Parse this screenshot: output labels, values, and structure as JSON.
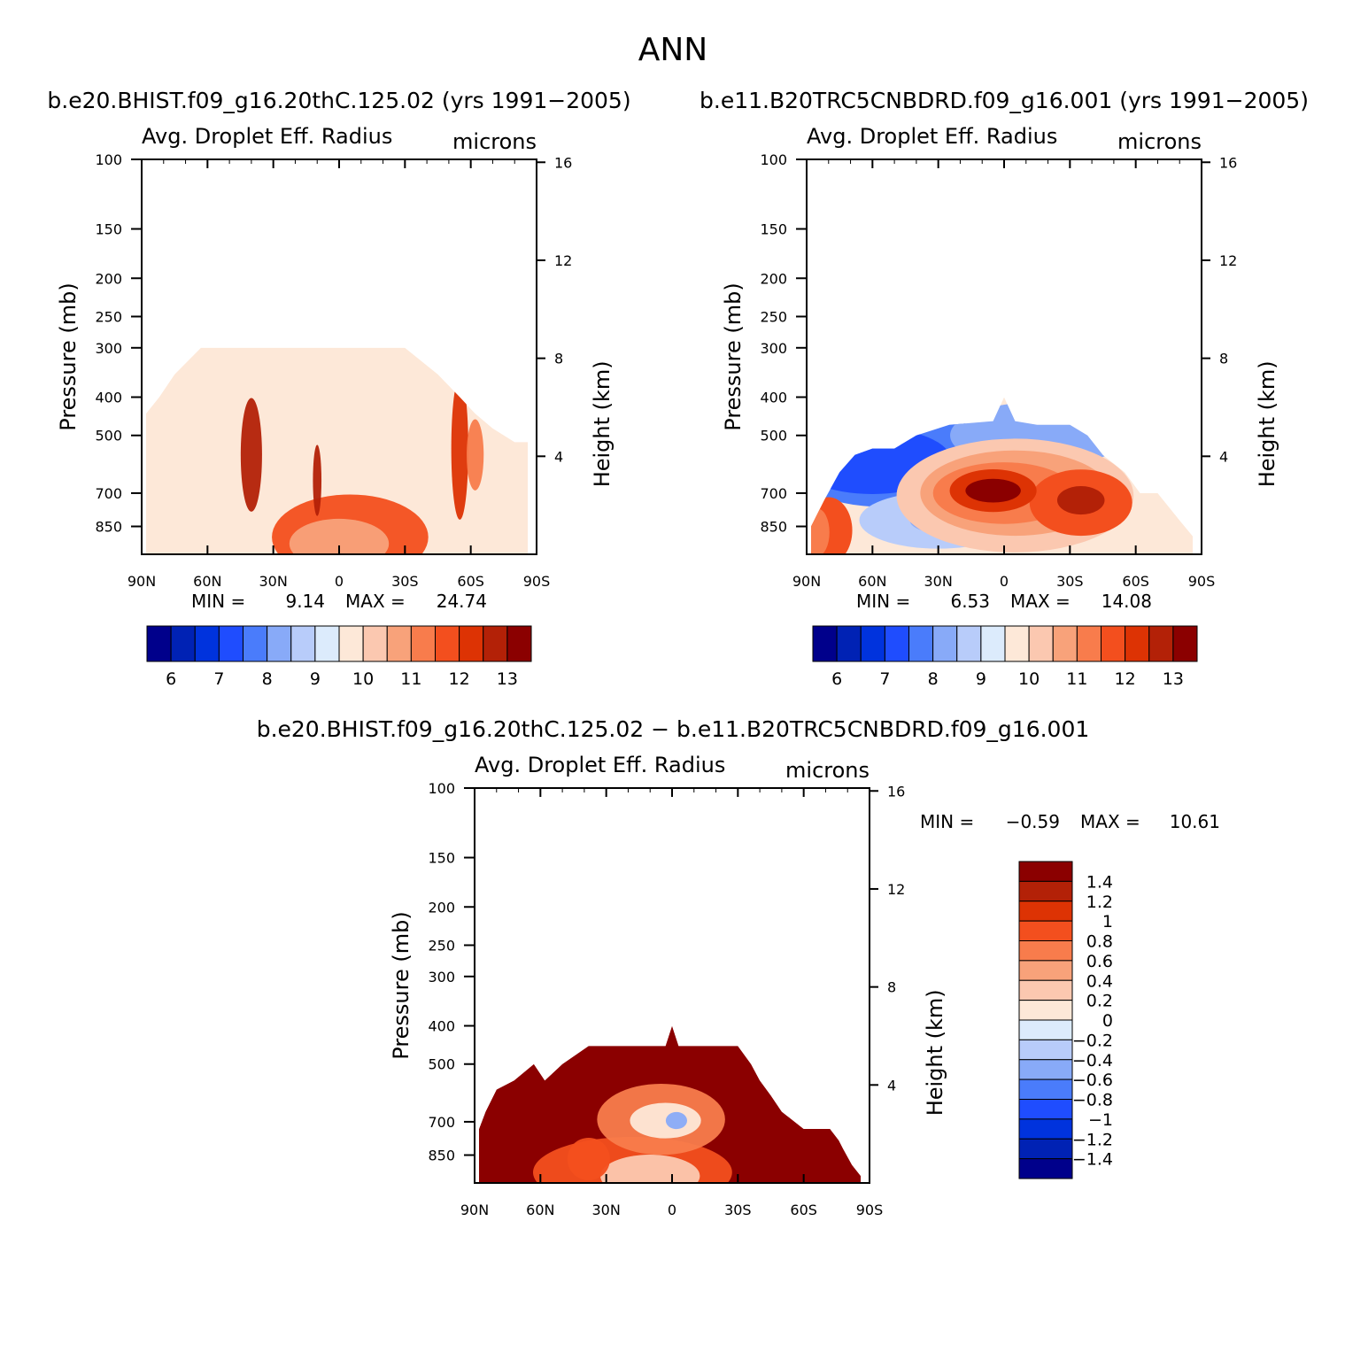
{
  "figure": {
    "title": "ANN",
    "diff_title": "b.e20.BHIST.f09_g16.20thC.125.02 − b.e11.B20TRC5CNBDRD.f09_g16.001"
  },
  "chart_data": [
    {
      "type": "heatmap",
      "case_title": "b.e20.BHIST.f09_g16.20thC.125.02 (yrs 1991−2005)",
      "title": "Avg. Droplet Eff. Radius",
      "units": "microns",
      "ylabel": "Pressure (mb)",
      "y2label": "Height (km)",
      "xticks": [
        "90N",
        "60N",
        "30N",
        "0",
        "30S",
        "60S",
        "90S"
      ],
      "xlim": [
        90,
        -90
      ],
      "yticks": [
        100,
        150,
        200,
        250,
        300,
        400,
        500,
        700,
        850
      ],
      "ylim": [
        100,
        1000
      ],
      "y_scale": "log",
      "y2ticks": [
        16,
        12,
        8,
        4
      ],
      "min_label": "MIN =",
      "min": "9.14",
      "max_label": "MAX =",
      "max": "24.74",
      "colorbar": {
        "orientation": "horizontal",
        "labels": [
          "6",
          "7",
          "8",
          "9",
          "10",
          "11",
          "12",
          "13"
        ],
        "colors": [
          "#00008b",
          "#0022b4",
          "#0033dd",
          "#1f4dfe",
          "#4a7cfb",
          "#88aaf8",
          "#b8ccfa",
          "#dcebfc",
          "#fde8d8",
          "#fbc8b0",
          "#f8a27a",
          "#f87c4c",
          "#f34f1e",
          "#dd3304",
          "#b32107",
          "#8b0000"
        ]
      },
      "data_top_pressure": {
        "lat": [
          88,
          82,
          75,
          63,
          45,
          30,
          15,
          0,
          -15,
          -30,
          -45,
          -55,
          -62,
          -70,
          -80,
          -86
        ],
        "pressure": [
          440,
          400,
          350,
          300,
          300,
          300,
          300,
          300,
          300,
          300,
          350,
          400,
          440,
          480,
          520,
          520
        ]
      },
      "fill_level": 13.5
    },
    {
      "type": "heatmap",
      "case_title": "b.e11.B20TRC5CNBDRD.f09_g16.001 (yrs 1991−2005)",
      "title": "Avg. Droplet Eff. Radius",
      "units": "microns",
      "ylabel": "Pressure (mb)",
      "y2label": "Height (km)",
      "xticks": [
        "90N",
        "60N",
        "30N",
        "0",
        "30S",
        "60S",
        "90S"
      ],
      "xlim": [
        90,
        -90
      ],
      "yticks": [
        100,
        150,
        200,
        250,
        300,
        400,
        500,
        700,
        850
      ],
      "ylim": [
        100,
        1000
      ],
      "y_scale": "log",
      "y2ticks": [
        16,
        12,
        8,
        4
      ],
      "min_label": "MIN =",
      "min": "6.53",
      "max_label": "MAX =",
      "max": "14.08",
      "colorbar": {
        "orientation": "horizontal",
        "labels": [
          "6",
          "7",
          "8",
          "9",
          "10",
          "11",
          "12",
          "13"
        ],
        "colors": [
          "#00008b",
          "#0022b4",
          "#0033dd",
          "#1f4dfe",
          "#4a7cfb",
          "#88aaf8",
          "#b8ccfa",
          "#dcebfc",
          "#fde8d8",
          "#fbc8b0",
          "#f8a27a",
          "#f87c4c",
          "#f34f1e",
          "#dd3304",
          "#b32107",
          "#8b0000"
        ]
      },
      "data_top_pressure": {
        "lat": [
          88,
          82,
          75,
          68,
          60,
          50,
          40,
          25,
          5,
          0,
          -5,
          -15,
          -30,
          -38,
          -45,
          -55,
          -62,
          -70,
          -80,
          -86
        ],
        "pressure": [
          850,
          730,
          620,
          560,
          540,
          540,
          500,
          470,
          460,
          400,
          460,
          470,
          470,
          500,
          560,
          620,
          700,
          700,
          820,
          900
        ]
      }
    },
    {
      "type": "heatmap",
      "title": "Avg. Droplet Eff. Radius",
      "units": "microns",
      "ylabel": "Pressure (mb)",
      "y2label": "Height (km)",
      "xticks": [
        "90N",
        "60N",
        "30N",
        "0",
        "30S",
        "60S",
        "90S"
      ],
      "xlim": [
        90,
        -90
      ],
      "yticks": [
        100,
        150,
        200,
        250,
        300,
        400,
        500,
        700,
        850
      ],
      "ylim": [
        100,
        1000
      ],
      "y_scale": "log",
      "y2ticks": [
        16,
        12,
        8,
        4
      ],
      "min_label": "MIN =",
      "min": "−0.59",
      "max_label": "MAX =",
      "max": "10.61",
      "colorbar": {
        "orientation": "vertical",
        "labels": [
          "1.4",
          "1.2",
          "1",
          "0.8",
          "0.6",
          "0.4",
          "0.2",
          "0",
          "−0.2",
          "−0.4",
          "−0.6",
          "−0.8",
          "−1",
          "−1.2",
          "−1.4"
        ],
        "colors": [
          "#8b0000",
          "#b32107",
          "#dd3304",
          "#f34f1e",
          "#f87c4c",
          "#f8a27a",
          "#fbc8b0",
          "#fde8d8",
          "#dcebfc",
          "#b8ccfa",
          "#88aaf8",
          "#4a7cfb",
          "#1f4dfe",
          "#0033dd",
          "#0022b4",
          "#00008b"
        ]
      },
      "data_top_pressure": {
        "lat": [
          88,
          85,
          80,
          72,
          63,
          58,
          50,
          38,
          3,
          0,
          -3,
          -30,
          -36,
          -40,
          -45,
          -50,
          -60,
          -72,
          -76,
          -78,
          -82,
          -86
        ],
        "pressure": [
          730,
          660,
          580,
          550,
          500,
          550,
          500,
          450,
          450,
          400,
          450,
          450,
          500,
          550,
          600,
          660,
          730,
          730,
          780,
          820,
          900,
          960
        ]
      },
      "fill_level": 1.5
    }
  ]
}
